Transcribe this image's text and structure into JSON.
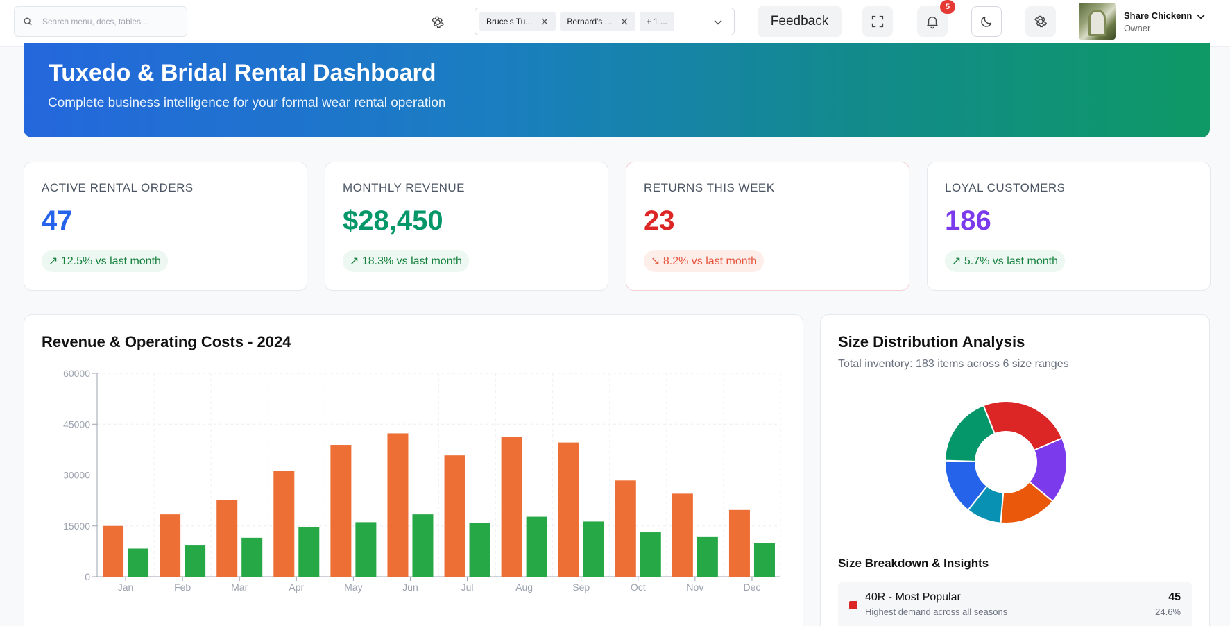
{
  "search": {
    "placeholder": "Search menu, docs, tables..."
  },
  "filter": {
    "chips": [
      "Bruce's Tu...",
      "Bernard's ...",
      "+ 1 ..."
    ]
  },
  "header": {
    "feedback_label": "Feedback",
    "notification_count": "5",
    "user_name": "Share Chickenn",
    "user_role": "Owner"
  },
  "hero": {
    "title": "Tuxedo & Bridal Rental Dashboard",
    "subtitle": "Complete business intelligence for your formal wear rental operation"
  },
  "stats": [
    {
      "label": "ACTIVE RENTAL ORDERS",
      "value": "47",
      "trend": "↗ 12.5% vs last month",
      "color": "#2563eb"
    },
    {
      "label": "MONTHLY REVENUE",
      "value": "$28,450",
      "trend": "↗ 18.3% vs last month",
      "color": "#059669"
    },
    {
      "label": "RETURNS THIS WEEK",
      "value": "23",
      "trend": "↘ 8.2% vs last month",
      "color": "#dc2626"
    },
    {
      "label": "LOYAL CUSTOMERS",
      "value": "186",
      "trend": "↗ 5.7% vs last month",
      "color": "#7c3aed"
    }
  ],
  "revenue_chart": {
    "title": "Revenue & Operating Costs - 2024"
  },
  "size_panel": {
    "title": "Size Distribution Analysis",
    "subtitle": "Total inventory: 183 items across 6 size ranges",
    "breakdown_title": "Size Breakdown & Insights",
    "top_item": {
      "name": "40R - Most Popular",
      "desc": "Highest demand across all seasons",
      "count": "45",
      "pct": "24.6%",
      "color": "#dc2626"
    }
  },
  "chart_data": [
    {
      "type": "bar",
      "title": "Revenue & Operating Costs - 2024",
      "categories": [
        "Jan",
        "Feb",
        "Mar",
        "Apr",
        "May",
        "Jun",
        "Jul",
        "Aug",
        "Sep",
        "Oct",
        "Nov",
        "Dec"
      ],
      "series": [
        {
          "color": "#ed6f36",
          "values": [
            15000,
            18400,
            22700,
            31200,
            38900,
            42300,
            35800,
            41200,
            39600,
            28400,
            24500,
            19700
          ]
        },
        {
          "color": "#26a847",
          "values": [
            8300,
            9200,
            11500,
            14700,
            16100,
            18400,
            15800,
            17700,
            16300,
            13100,
            11700,
            10000
          ]
        }
      ],
      "ylim": [
        0,
        60000
      ],
      "yticks": [
        0,
        15000,
        30000,
        45000,
        60000
      ],
      "grid": true
    },
    {
      "type": "pie",
      "title": "Size Distribution Analysis",
      "values": [
        45,
        32,
        28,
        17,
        27,
        34
      ],
      "colors": [
        "#dc2626",
        "#7c3aed",
        "#ea580c",
        "#0891b2",
        "#2563eb",
        "#059669"
      ]
    }
  ]
}
